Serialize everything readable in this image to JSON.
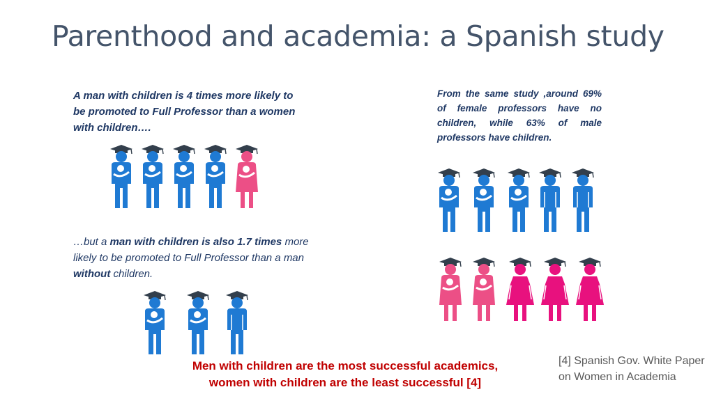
{
  "slide": {
    "title": "Parenthood and academia: a Spanish study",
    "left_top": {
      "text": "A man with children is 4 times more likely to be promoted to Full Professor than a women with children….",
      "ratio_shown": {
        "fathers": 4,
        "mothers": 1
      }
    },
    "left_bottom": {
      "parts": {
        "p1": "…but a ",
        "p2": "man with children is also 1.7 times",
        "p3": " more likely to be promoted to Full Professor than a man ",
        "p4": "without",
        "p5": " children."
      }
    },
    "right": {
      "text": "From the same study ,around 69% of female professors have no children, while 63% of male professors have children.",
      "male_row": {
        "with_children": 3,
        "without_children": 2
      },
      "female_row": {
        "with_children": 2,
        "without_children": 3
      }
    },
    "conclusion": {
      "line1": "Men with children are the most successful academics,",
      "line2": "women with children are the least successful [4]"
    },
    "citation": "[4] Spanish Gov. White Paper on Women in Academia",
    "colors": {
      "male": "#1f7ad3",
      "female": "#ec4f86",
      "cap": "#333f4c",
      "conclusion": "#c00000",
      "title": "#44546a",
      "body": "#1f3864"
    }
  }
}
